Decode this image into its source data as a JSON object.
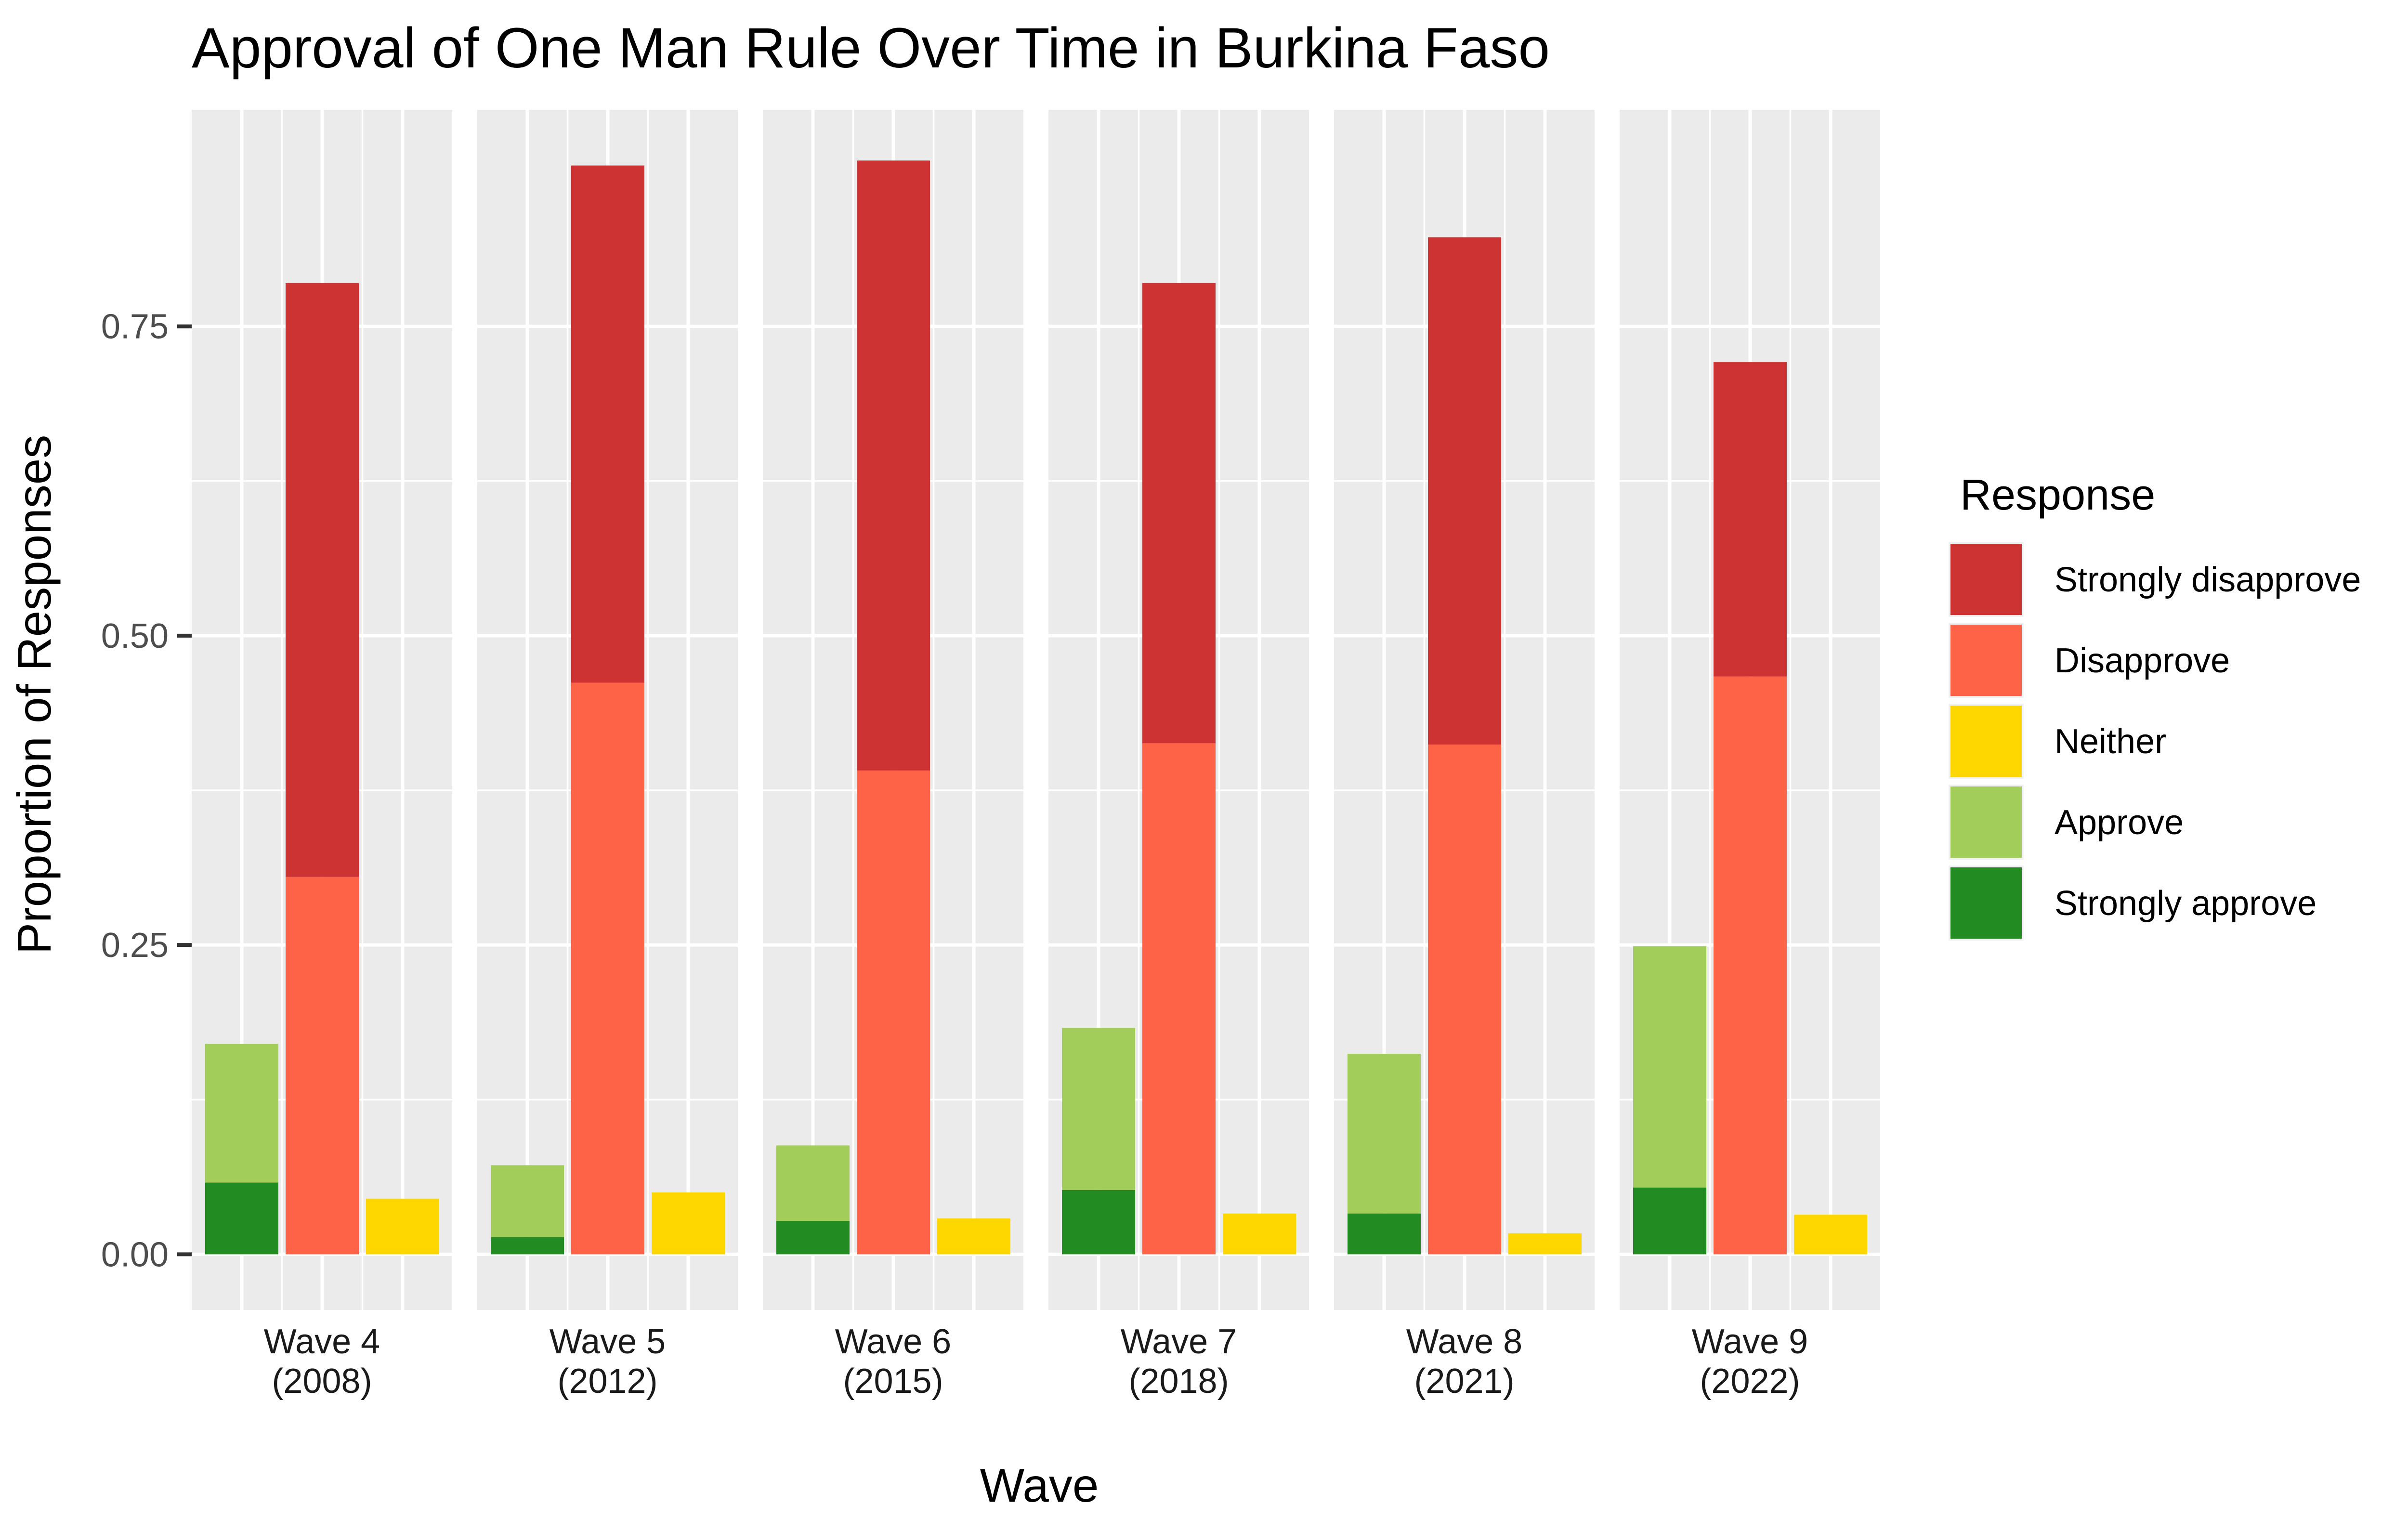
{
  "chart_data": {
    "type": "bar",
    "title": "Approval of One Man Rule Over Time in Burkina Faso",
    "xlabel": "Wave",
    "ylabel": "Proportion of Responses",
    "ylim": [
      -0.045,
      0.925
    ],
    "yticks": [
      {
        "value": 0.0,
        "label": "0.00"
      },
      {
        "value": 0.25,
        "label": "0.25"
      },
      {
        "value": 0.5,
        "label": "0.50"
      },
      {
        "value": 0.75,
        "label": "0.75"
      }
    ],
    "grid": true,
    "legend_position": "right",
    "legend": {
      "title": "Response",
      "items": [
        {
          "label": "Strongly disapprove",
          "color": "#CD3333"
        },
        {
          "label": "Disapprove",
          "color": "#FF6347"
        },
        {
          "label": "Neither",
          "color": "#FFD700"
        },
        {
          "label": "Approve",
          "color": "#A2CD5A"
        },
        {
          "label": "Strongly approve",
          "color": "#228B22"
        }
      ]
    },
    "bar_groups": [
      "Approve side",
      "Disapprove side",
      "Neither"
    ],
    "panels": [
      {
        "label_line1": "Wave 4",
        "label_line2": "(2008)",
        "strongly_approve": 0.058,
        "approve": 0.112,
        "disapprove": 0.305,
        "strongly_disapprove": 0.48,
        "neither": 0.045
      },
      {
        "label_line1": "Wave 5",
        "label_line2": "(2012)",
        "strongly_approve": 0.014,
        "approve": 0.058,
        "disapprove": 0.462,
        "strongly_disapprove": 0.418,
        "neither": 0.05
      },
      {
        "label_line1": "Wave 6",
        "label_line2": "(2015)",
        "strongly_approve": 0.027,
        "approve": 0.061,
        "disapprove": 0.391,
        "strongly_disapprove": 0.493,
        "neither": 0.029
      },
      {
        "label_line1": "Wave 7",
        "label_line2": "(2018)",
        "strongly_approve": 0.052,
        "approve": 0.131,
        "disapprove": 0.413,
        "strongly_disapprove": 0.372,
        "neither": 0.033
      },
      {
        "label_line1": "Wave 8",
        "label_line2": "(2021)",
        "strongly_approve": 0.033,
        "approve": 0.129,
        "disapprove": 0.412,
        "strongly_disapprove": 0.41,
        "neither": 0.017
      },
      {
        "label_line1": "Wave 9",
        "label_line2": "(2022)",
        "strongly_approve": 0.054,
        "approve": 0.195,
        "disapprove": 0.467,
        "strongly_disapprove": 0.254,
        "neither": 0.032
      }
    ]
  }
}
